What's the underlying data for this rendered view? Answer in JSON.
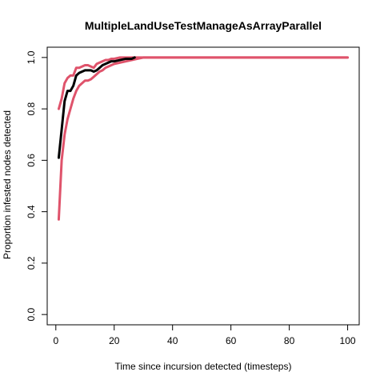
{
  "chart_data": {
    "type": "line",
    "title": "MultipleLandUseTestManageAsArrayParallel",
    "xlabel": "Time since incursion detected (timesteps)",
    "ylabel": "Proportion infested nodes detected",
    "xlim": [
      -2.96,
      103.96
    ],
    "ylim": [
      -0.04,
      1.04
    ],
    "x_ticks": [
      0,
      20,
      40,
      60,
      80,
      100
    ],
    "y_ticks": [
      0.0,
      0.2,
      0.4,
      0.6,
      0.8,
      1.0
    ],
    "x_tick_labels": [
      "0",
      "20",
      "40",
      "60",
      "80",
      "100"
    ],
    "y_tick_labels": [
      "0.0",
      "0.2",
      "0.4",
      "0.6",
      "0.8",
      "1.0"
    ],
    "grid": false,
    "series": [
      {
        "color": "#DF536B",
        "width": 3,
        "points": [
          [
            1,
            0.8
          ],
          [
            2,
            0.84
          ],
          [
            3,
            0.9
          ],
          [
            4,
            0.92
          ],
          [
            5,
            0.93
          ],
          [
            6,
            0.93
          ],
          [
            7,
            0.96
          ],
          [
            8,
            0.96
          ],
          [
            9,
            0.965
          ],
          [
            10,
            0.97
          ],
          [
            11,
            0.97
          ],
          [
            12,
            0.965
          ],
          [
            13,
            0.96
          ],
          [
            14,
            0.975
          ],
          [
            15,
            0.98
          ],
          [
            16,
            0.985
          ],
          [
            17,
            0.99
          ],
          [
            18,
            0.99
          ],
          [
            19,
            0.995
          ],
          [
            20,
            0.995
          ],
          [
            22,
            1.0
          ],
          [
            25,
            1.0
          ],
          [
            30,
            1.0
          ],
          [
            40,
            1.0
          ],
          [
            60,
            1.0
          ],
          [
            80,
            1.0
          ],
          [
            100,
            1.0
          ]
        ]
      },
      {
        "color": "#DF536B",
        "width": 3,
        "points": [
          [
            1,
            0.37
          ],
          [
            2,
            0.6
          ],
          [
            3,
            0.7
          ],
          [
            4,
            0.76
          ],
          [
            5,
            0.8
          ],
          [
            6,
            0.84
          ],
          [
            7,
            0.87
          ],
          [
            8,
            0.89
          ],
          [
            9,
            0.9
          ],
          [
            10,
            0.91
          ],
          [
            11,
            0.91
          ],
          [
            12,
            0.915
          ],
          [
            13,
            0.925
          ],
          [
            14,
            0.935
          ],
          [
            15,
            0.945
          ],
          [
            16,
            0.95
          ],
          [
            17,
            0.96
          ],
          [
            18,
            0.965
          ],
          [
            19,
            0.97
          ],
          [
            20,
            0.975
          ],
          [
            22,
            0.98
          ],
          [
            24,
            0.985
          ],
          [
            26,
            0.99
          ],
          [
            28,
            0.995
          ],
          [
            30,
            1.0
          ],
          [
            40,
            1.0
          ],
          [
            60,
            1.0
          ],
          [
            80,
            1.0
          ],
          [
            100,
            1.0
          ]
        ]
      },
      {
        "color": "#000000",
        "width": 3,
        "points": [
          [
            1,
            0.61
          ],
          [
            2,
            0.72
          ],
          [
            3,
            0.83
          ],
          [
            4,
            0.87
          ],
          [
            5,
            0.87
          ],
          [
            6,
            0.89
          ],
          [
            7,
            0.93
          ],
          [
            8,
            0.94
          ],
          [
            9,
            0.945
          ],
          [
            10,
            0.95
          ],
          [
            11,
            0.95
          ],
          [
            12,
            0.95
          ],
          [
            13,
            0.945
          ],
          [
            14,
            0.95
          ],
          [
            15,
            0.96
          ],
          [
            16,
            0.97
          ],
          [
            17,
            0.975
          ],
          [
            18,
            0.98
          ],
          [
            19,
            0.985
          ],
          [
            20,
            0.985
          ],
          [
            22,
            0.99
          ],
          [
            24,
            0.995
          ],
          [
            26,
            0.995
          ],
          [
            27,
            1.0
          ]
        ]
      }
    ]
  }
}
